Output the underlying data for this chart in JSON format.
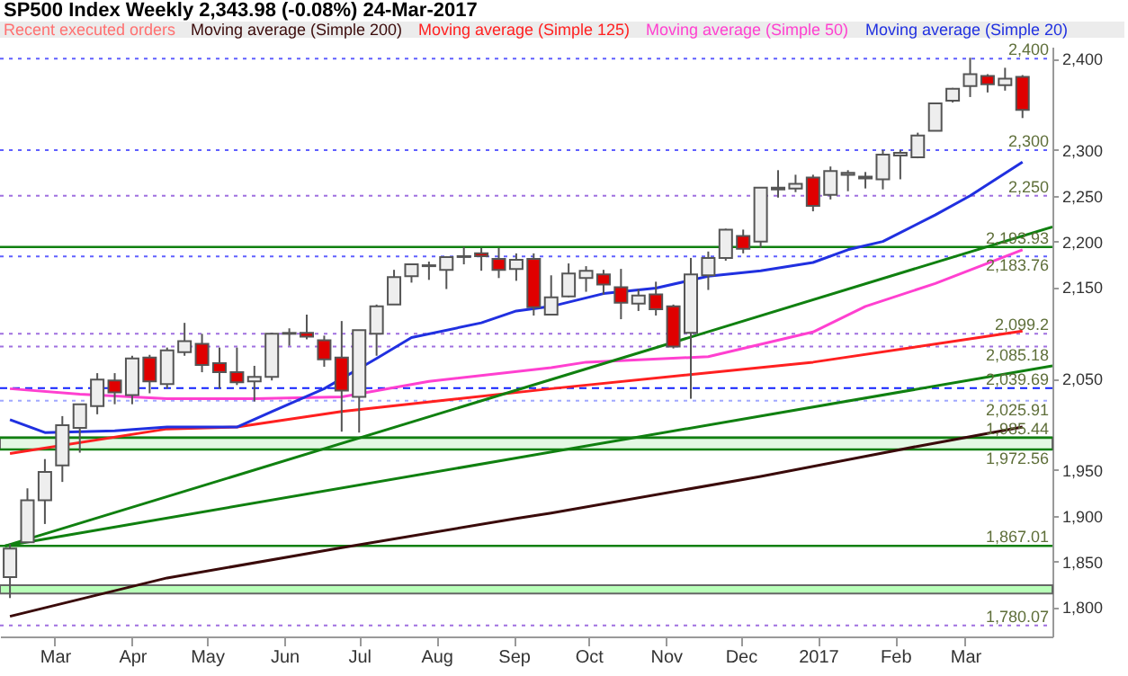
{
  "chart_data": {
    "type": "candlestick",
    "title": "SP500 Index   Weekly   2,343.98 (-0.08%)   24-Mar-2017",
    "annotations": [
      "Recent executed orders"
    ],
    "legend": "top",
    "x": [
      "2016-02-12",
      "2016-02-19",
      "2016-02-26",
      "2016-03-04",
      "2016-03-11",
      "2016-03-18",
      "2016-03-25",
      "2016-04-01",
      "2016-04-08",
      "2016-04-15",
      "2016-04-22",
      "2016-04-29",
      "2016-05-06",
      "2016-05-13",
      "2016-05-20",
      "2016-05-27",
      "2016-06-03",
      "2016-06-10",
      "2016-06-17",
      "2016-06-24",
      "2016-07-01",
      "2016-07-08",
      "2016-07-15",
      "2016-07-22",
      "2016-07-29",
      "2016-08-05",
      "2016-08-12",
      "2016-08-19",
      "2016-08-26",
      "2016-09-02",
      "2016-09-09",
      "2016-09-16",
      "2016-09-23",
      "2016-09-30",
      "2016-10-07",
      "2016-10-14",
      "2016-10-21",
      "2016-10-28",
      "2016-11-04",
      "2016-11-11",
      "2016-11-18",
      "2016-11-25",
      "2016-12-02",
      "2016-12-09",
      "2016-12-16",
      "2016-12-23",
      "2016-12-30",
      "2017-01-06",
      "2017-01-13",
      "2017-01-20",
      "2017-01-27",
      "2017-02-03",
      "2017-02-10",
      "2017-02-17",
      "2017-02-24",
      "2017-03-03",
      "2017-03-10",
      "2017-03-17",
      "2017-03-24"
    ],
    "ohlc": [
      [
        1833,
        1869,
        1810,
        1864
      ],
      [
        1871,
        1930,
        1871,
        1917
      ],
      [
        1917,
        1962,
        1891,
        1948
      ],
      [
        1955,
        2009,
        1937,
        1999
      ],
      [
        1996,
        2022,
        1969,
        2022
      ],
      [
        2020,
        2056,
        2011,
        2049
      ],
      [
        2048,
        2056,
        2022,
        2035
      ],
      [
        2032,
        2075,
        2022,
        2072
      ],
      [
        2073,
        2076,
        2034,
        2047
      ],
      [
        2044,
        2084,
        2039,
        2081
      ],
      [
        2079,
        2111,
        2075,
        2091
      ],
      [
        2088,
        2099,
        2057,
        2065
      ],
      [
        2067,
        2084,
        2039,
        2057
      ],
      [
        2057,
        2084,
        2043,
        2046
      ],
      [
        2047,
        2064,
        2025,
        2052
      ],
      [
        2052,
        2100,
        2048,
        2099
      ],
      [
        2100,
        2105,
        2086,
        2099
      ],
      [
        2100,
        2120,
        2093,
        2096
      ],
      [
        2092,
        2097,
        2063,
        2071
      ],
      [
        2073,
        2113,
        1992,
        2037
      ],
      [
        2030,
        2103,
        1991,
        2103
      ],
      [
        2099,
        2131,
        2075,
        2129
      ],
      [
        2131,
        2169,
        2131,
        2161
      ],
      [
        2162,
        2175,
        2155,
        2175
      ],
      [
        2173,
        2178,
        2158,
        2174
      ],
      [
        2169,
        2184,
        2148,
        2183
      ],
      [
        2183,
        2194,
        2175,
        2184
      ],
      [
        2187,
        2193,
        2168,
        2184
      ],
      [
        2181,
        2193,
        2160,
        2169
      ],
      [
        2170,
        2187,
        2157,
        2180
      ],
      [
        2181,
        2187,
        2119,
        2128
      ],
      [
        2120,
        2163,
        2120,
        2139
      ],
      [
        2140,
        2176,
        2139,
        2165
      ],
      [
        2160,
        2173,
        2145,
        2168
      ],
      [
        2164,
        2169,
        2142,
        2153
      ],
      [
        2150,
        2170,
        2115,
        2133
      ],
      [
        2132,
        2148,
        2124,
        2141
      ],
      [
        2142,
        2156,
        2119,
        2126
      ],
      [
        2129,
        2131,
        2083,
        2085
      ],
      [
        2100,
        2182,
        2028,
        2164
      ],
      [
        2163,
        2189,
        2147,
        2182
      ],
      [
        2182,
        2214,
        2179,
        2213
      ],
      [
        2206,
        2213,
        2187,
        2192
      ],
      [
        2200,
        2259,
        2193,
        2259
      ],
      [
        2257,
        2278,
        2248,
        2259
      ],
      [
        2258,
        2273,
        2254,
        2263
      ],
      [
        2270,
        2273,
        2233,
        2239
      ],
      [
        2251,
        2282,
        2246,
        2277
      ],
      [
        2273,
        2278,
        2255,
        2275
      ],
      [
        2269,
        2276,
        2258,
        2271
      ],
      [
        2268,
        2300,
        2257,
        2295
      ],
      [
        2294,
        2300,
        2268,
        2297
      ],
      [
        2292,
        2319,
        2291,
        2316
      ],
      [
        2321,
        2351,
        2321,
        2351
      ],
      [
        2354,
        2368,
        2352,
        2367
      ],
      [
        2370,
        2401,
        2358,
        2383
      ],
      [
        2381,
        2383,
        2363,
        2372
      ],
      [
        2371,
        2390,
        2365,
        2378
      ],
      [
        2380,
        2382,
        2335,
        2344
      ]
    ],
    "colors": [
      "#eeeeee",
      "#eeeeee",
      "#eeeeee",
      "#eeeeee",
      "#eeeeee",
      "#eeeeee",
      "#e00000",
      "#eeeeee",
      "#e00000",
      "#eeeeee",
      "#eeeeee",
      "#e00000",
      "#e00000",
      "#e00000",
      "#eeeeee",
      "#eeeeee",
      "#e00000",
      "#e00000",
      "#e00000",
      "#e00000",
      "#eeeeee",
      "#eeeeee",
      "#eeeeee",
      "#eeeeee",
      "#eeeeee",
      "#eeeeee",
      "#eeeeee",
      "#e00000",
      "#e00000",
      "#eeeeee",
      "#e00000",
      "#eeeeee",
      "#eeeeee",
      "#eeeeee",
      "#e00000",
      "#e00000",
      "#eeeeee",
      "#e00000",
      "#e00000",
      "#eeeeee",
      "#eeeeee",
      "#eeeeee",
      "#e00000",
      "#eeeeee",
      "#eeeeee",
      "#eeeeee",
      "#e00000",
      "#eeeeee",
      "#eeeeee",
      "#eeeeee",
      "#eeeeee",
      "#eeeeee",
      "#eeeeee",
      "#eeeeee",
      "#eeeeee",
      "#eeeeee",
      "#e00000",
      "#eeeeee",
      "#e00000"
    ],
    "series": [
      {
        "type": "line",
        "name": "Moving average (Simple 200)",
        "color": "#3a0a0a",
        "x": [
          "2016-02-12",
          "2016-04-15",
          "2016-06-24",
          "2016-09-02",
          "2016-09-16",
          "2016-12-09",
          "2017-02-10",
          "2017-03-24"
        ],
        "values": [
          1790,
          1832,
          1865,
          1897,
          1903,
          1943,
          1976,
          1997
        ]
      },
      {
        "type": "line",
        "name": "Moving average (Simple 125)",
        "color": "#ff2020",
        "x": [
          "2016-02-12",
          "2016-04-15",
          "2016-05-13",
          "2016-06-24",
          "2016-09-16",
          "2016-12-30",
          "2017-03-24"
        ],
        "values": [
          1968,
          1995,
          1997,
          2014,
          2039,
          2068,
          2102
        ]
      },
      {
        "type": "line",
        "name": "Moving average (Simple 50)",
        "color": "#ff40d0",
        "x": [
          "2016-02-12",
          "2016-03-11",
          "2016-04-15",
          "2016-05-20",
          "2016-06-24",
          "2016-07-29",
          "2016-09-16",
          "2016-09-30",
          "2016-11-18",
          "2016-12-30",
          "2017-01-20",
          "2017-02-17",
          "2017-03-24"
        ],
        "values": [
          2039,
          2033,
          2028,
          2028,
          2030,
          2047,
          2062,
          2068,
          2074,
          2101,
          2129,
          2154,
          2191
        ]
      },
      {
        "type": "line",
        "name": "Moving average (Simple 20)",
        "color": "#2030e0",
        "x": [
          "2016-02-12",
          "2016-02-26",
          "2016-03-25",
          "2016-04-15",
          "2016-05-13",
          "2016-05-27",
          "2016-06-17",
          "2016-07-08",
          "2016-07-22",
          "2016-08-19",
          "2016-09-02",
          "2016-09-16",
          "2016-10-07",
          "2016-10-28",
          "2016-11-18",
          "2016-12-09",
          "2016-12-30",
          "2017-01-13",
          "2017-01-27",
          "2017-02-17",
          "2017-03-03",
          "2017-03-24"
        ],
        "values": [
          2005,
          1991,
          1993,
          1997,
          1997,
          2014,
          2039,
          2072,
          2095,
          2111,
          2124,
          2129,
          2143,
          2149,
          2162,
          2168,
          2177,
          2191,
          2200,
          2229,
          2250,
          2287
        ]
      },
      {
        "type": "line",
        "color": "#108010",
        "x": [
          "2016-02-10",
          "2017-04-05"
        ],
        "values": [
          1867,
          2216
        ]
      },
      {
        "type": "line",
        "color": "#108010",
        "x": [
          "2016-02-10",
          "2017-04-05"
        ],
        "values": [
          1867,
          2064
        ]
      }
    ],
    "ref_lines": [
      {
        "axis": "y",
        "value": 2400,
        "label": "2,400",
        "color": "#6060ff",
        "line_style": "dotted"
      },
      {
        "axis": "y",
        "value": 2300,
        "label": "2,300",
        "color": "#6060ff",
        "line_style": "dotted"
      },
      {
        "axis": "y",
        "value": 2250,
        "label": "2,250",
        "color": "#a070e0",
        "line_style": "dotted"
      },
      {
        "axis": "y",
        "value": 2193.93,
        "label": "2,193.93",
        "color": "#108010",
        "line_style": "solid"
      },
      {
        "axis": "y",
        "value": 2183.76,
        "label": "2,183.76",
        "color": "#6060ff",
        "line_style": "dotted"
      },
      {
        "axis": "y",
        "value": 2099.2,
        "label": "2,099.2",
        "color": "#a070e0",
        "line_style": "dotted"
      },
      {
        "axis": "y",
        "value": 2085.18,
        "label": "2,085.18",
        "color": "#a070e0",
        "line_style": "dotted"
      },
      {
        "axis": "y",
        "value": 2039.69,
        "label": "2,039.69",
        "color": "#1020ff",
        "line_style": "dashed"
      },
      {
        "axis": "y",
        "value": 2025.91,
        "label": "2,025.91",
        "color": "#a0a8ff",
        "line_style": "dotted"
      },
      {
        "axis": "y",
        "value": 1985.44,
        "label": "1,985.44",
        "color": "#108010",
        "line_style": "solid"
      },
      {
        "axis": "y",
        "value": 1972.56,
        "label": "1,972.56",
        "color": "#108010",
        "line_style": "solid"
      },
      {
        "axis": "y",
        "value": 1867.01,
        "label": "1,867.01",
        "color": "#108010",
        "line_style": "solid"
      },
      {
        "axis": "y",
        "value": 1780.07,
        "label": "1,780.07",
        "color": "#a070e0",
        "line_style": "dotted"
      }
    ],
    "bands": [
      {
        "axis": "y",
        "from": 1972.56,
        "to": 1985.44,
        "color": "#e4f8e4"
      },
      {
        "axis": "y",
        "from": 1815,
        "to": 1824,
        "color": "#b8ffb8"
      }
    ],
    "ylim": [
      1768,
      2413
    ],
    "yticks": [
      {
        "value": 1800,
        "label": "1,800"
      },
      {
        "value": 1850,
        "label": "1,850"
      },
      {
        "value": 1900,
        "label": "1,900"
      },
      {
        "value": 1950,
        "label": "1,950"
      },
      {
        "value": 2050,
        "label": "2,050"
      },
      {
        "value": 2150,
        "label": "2,150"
      },
      {
        "value": 2200,
        "label": "2,200"
      },
      {
        "value": 2250,
        "label": "2,250"
      },
      {
        "value": 2300,
        "label": "2,300"
      },
      {
        "value": 2400,
        "label": "2,400"
      }
    ],
    "xlim": [
      "2016-02-08",
      "2017-04-05"
    ],
    "xticks": [
      {
        "value": "2016-03-01",
        "label": "Mar"
      },
      {
        "value": "2016-04-01",
        "label": "Apr"
      },
      {
        "value": "2016-05-01",
        "label": "May"
      },
      {
        "value": "2016-06-01",
        "label": "Jun"
      },
      {
        "value": "2016-07-01",
        "label": "Jul"
      },
      {
        "value": "2016-08-01",
        "label": "Aug"
      },
      {
        "value": "2016-09-01",
        "label": "Sep"
      },
      {
        "value": "2016-10-01",
        "label": "Oct"
      },
      {
        "value": "2016-11-01",
        "label": "Nov"
      },
      {
        "value": "2016-12-01",
        "label": "Dec"
      },
      {
        "value": "2017-01-01",
        "label": "2017"
      },
      {
        "value": "2017-02-01",
        "label": "Feb"
      },
      {
        "value": "2017-03-01",
        "label": "Mar"
      }
    ],
    "grid": false
  }
}
